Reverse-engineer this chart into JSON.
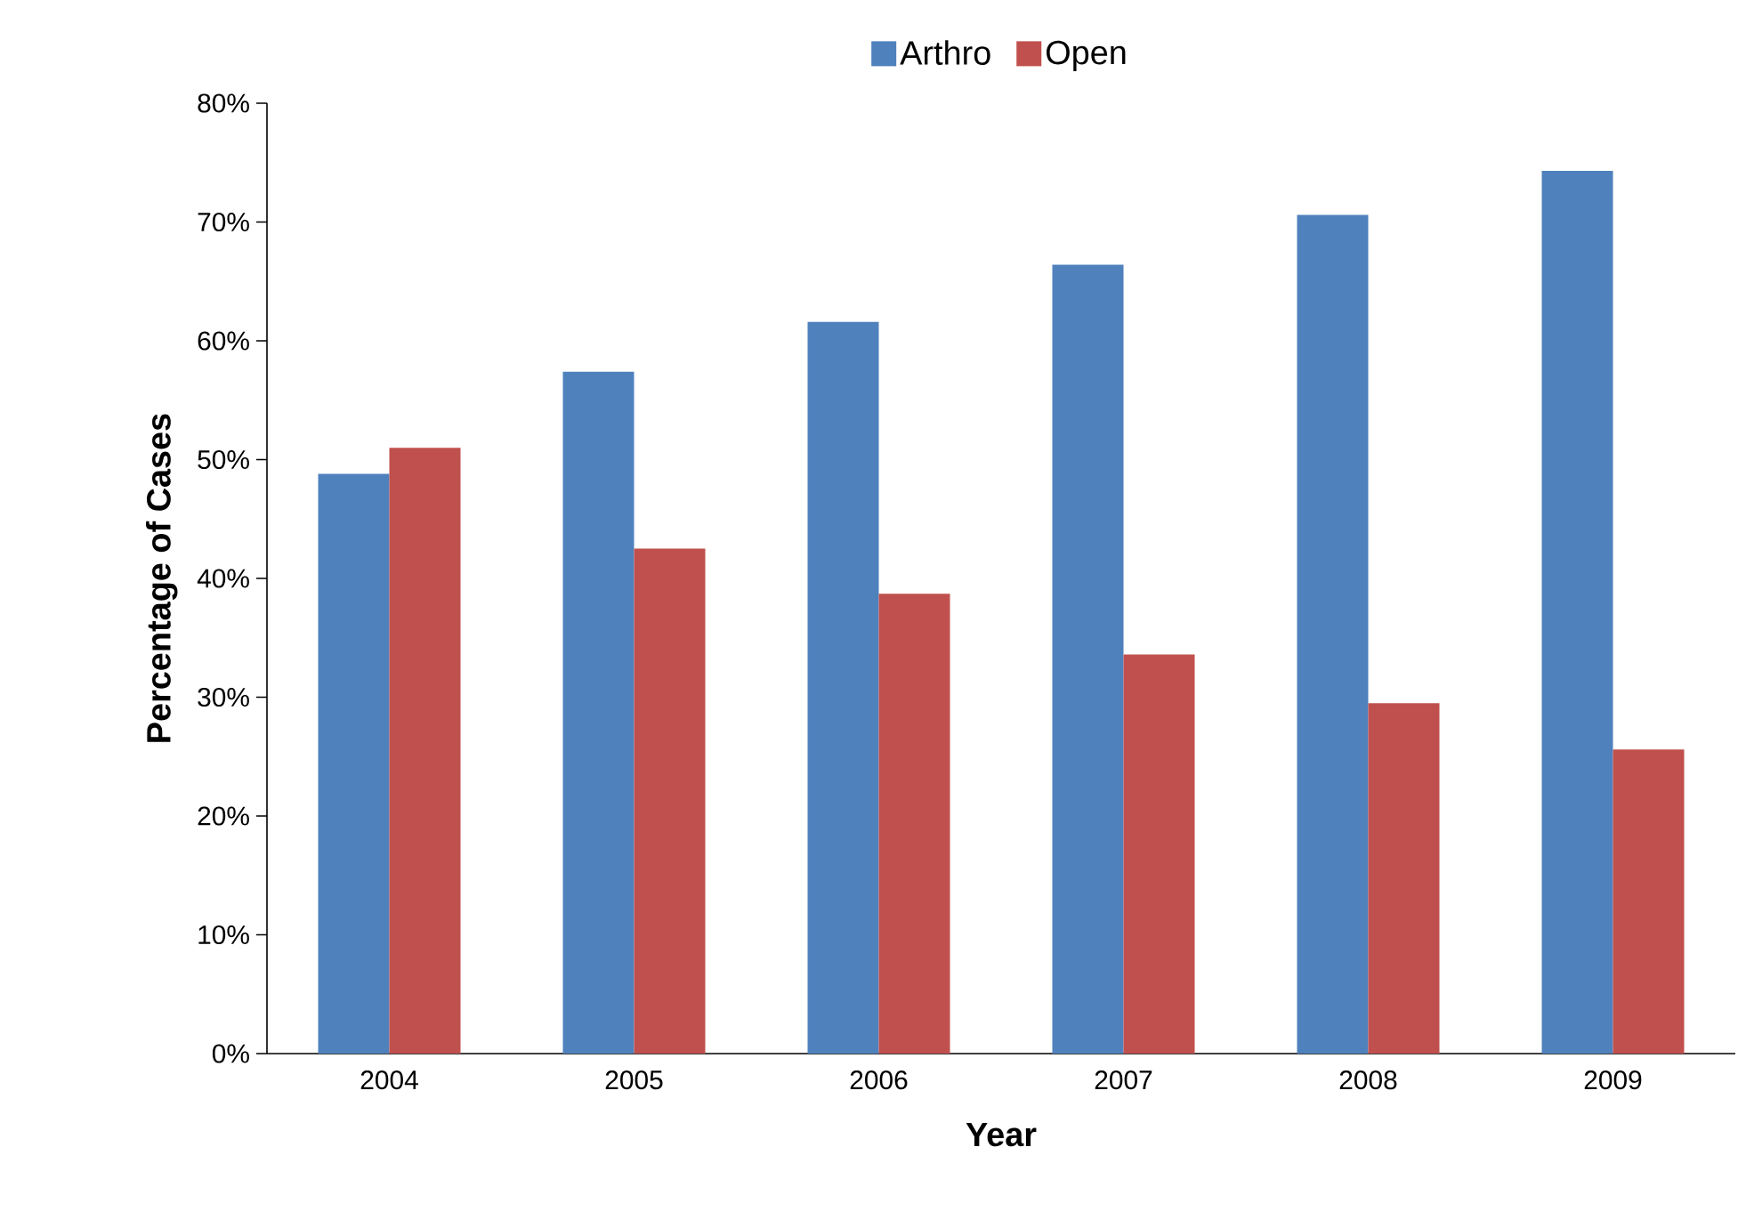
{
  "chart_data": {
    "type": "bar",
    "xlabel": "Year",
    "ylabel": "Percentage of Cases",
    "categories": [
      "2004",
      "2005",
      "2006",
      "2007",
      "2008",
      "2009"
    ],
    "series": [
      {
        "name": "Arthro",
        "color": "#4f81bd",
        "values": [
          48.8,
          57.4,
          61.6,
          66.4,
          70.6,
          74.3
        ]
      },
      {
        "name": "Open",
        "color": "#c0504d",
        "values": [
          51,
          42.5,
          38.7,
          33.6,
          29.5,
          25.6
        ]
      }
    ],
    "ylim": [
      0,
      80
    ],
    "yticks": [
      {
        "value": 0,
        "label": "0%"
      },
      {
        "value": 10,
        "label": "10%"
      },
      {
        "value": 20,
        "label": "20%"
      },
      {
        "value": 30,
        "label": "30%"
      },
      {
        "value": 40,
        "label": "40%"
      },
      {
        "value": 50,
        "label": "50%"
      },
      {
        "value": 60,
        "label": "60%"
      },
      {
        "value": 70,
        "label": "70%"
      },
      {
        "value": 80,
        "label": "80%"
      }
    ],
    "grid": false,
    "legend": "top"
  }
}
